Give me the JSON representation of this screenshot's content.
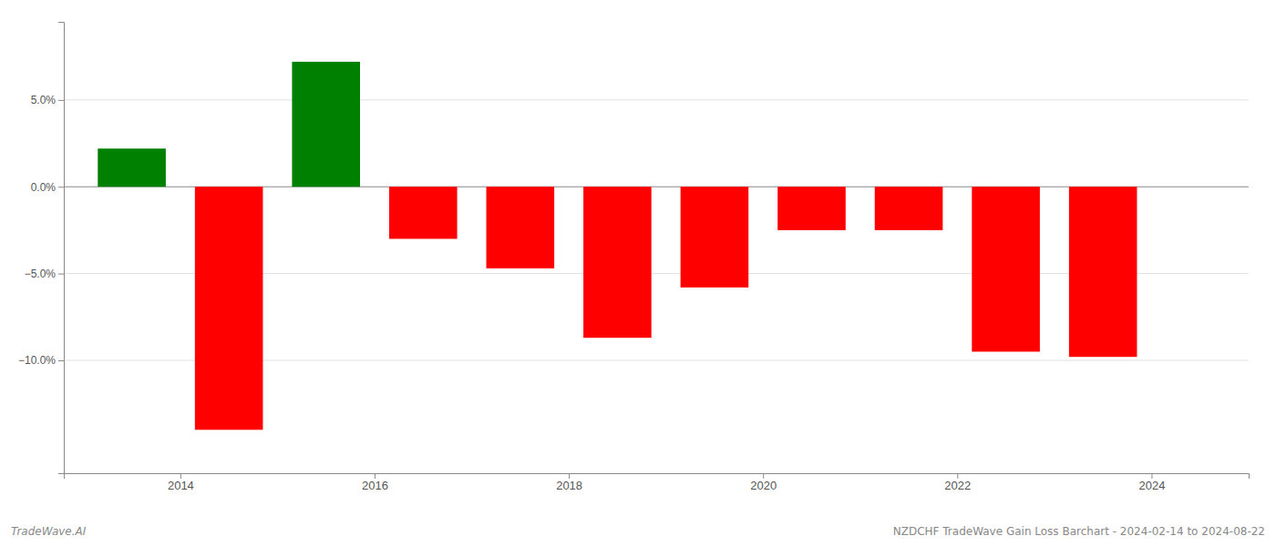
{
  "chart_data": {
    "type": "bar",
    "x": [
      2013.5,
      2014.5,
      2015.5,
      2016.5,
      2017.5,
      2018.5,
      2019.5,
      2020.5,
      2021.5,
      2022.5,
      2023.5
    ],
    "values": [
      2.2,
      -14.0,
      7.2,
      -3.0,
      -4.7,
      -8.7,
      -5.8,
      -2.5,
      -2.5,
      -9.5,
      -9.8
    ],
    "colors": [
      "#008000",
      "#ff0000",
      "#008000",
      "#ff0000",
      "#ff0000",
      "#ff0000",
      "#ff0000",
      "#ff0000",
      "#ff0000",
      "#ff0000",
      "#ff0000"
    ],
    "xlim": [
      2012.8,
      2025.0
    ],
    "xticks": [
      2014,
      2016,
      2018,
      2020,
      2022,
      2024
    ],
    "ylim": [
      -16.5,
      9.5
    ],
    "yticks": [
      {
        "value": -10.0,
        "label": "−10.0%"
      },
      {
        "value": -5.0,
        "label": "−5.0%"
      },
      {
        "value": 0.0,
        "label": "0.0%"
      },
      {
        "value": 5.0,
        "label": "5.0%"
      }
    ],
    "grid": true,
    "annotations": [
      "TradeWave.AI",
      "NZDCHF TradeWave Gain Loss Barchart - 2024-02-14 to 2024-08-22"
    ]
  }
}
